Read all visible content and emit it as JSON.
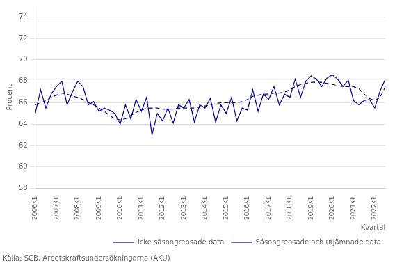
{
  "chart_data": {
    "type": "line",
    "xlabel": "Kvartal",
    "ylabel": "Procent",
    "annotations": [
      "Källa: SCB, Arbetskraftsundersökningarna (AKU)"
    ],
    "categories": [
      "2006K1",
      null,
      null,
      null,
      "2007K1",
      null,
      null,
      null,
      "2008K1",
      null,
      null,
      null,
      "2009K1",
      null,
      null,
      null,
      "2010K1",
      null,
      null,
      null,
      "2011K1",
      null,
      null,
      null,
      "2012K1",
      null,
      null,
      null,
      "2013K1",
      null,
      null,
      null,
      "2014K1",
      null,
      null,
      null,
      "2015K1",
      null,
      null,
      null,
      "2016K1",
      null,
      null,
      null,
      "2017K1",
      null,
      null,
      null,
      "2018K1",
      null,
      null,
      null,
      "2019K1",
      null,
      null,
      null,
      "2020K1",
      null,
      null,
      null,
      "2021K1",
      null,
      null,
      null,
      "2022K1",
      null,
      null
    ],
    "series": [
      {
        "name": "Icke säsongrensade data",
        "color": "#00008B",
        "line_style": "solid",
        "values": [
          65.0,
          67.2,
          65.5,
          66.8,
          67.5,
          68.0,
          65.8,
          67.0,
          68.0,
          67.5,
          65.8,
          66.1,
          65.2,
          65.5,
          65.3,
          65.0,
          64.0,
          65.8,
          64.5,
          66.3,
          65.2,
          66.5,
          63.0,
          65.0,
          64.3,
          65.5,
          64.1,
          65.8,
          65.5,
          66.3,
          64.2,
          65.8,
          65.5,
          66.4,
          64.2,
          65.8,
          65.0,
          66.5,
          64.3,
          65.5,
          65.3,
          67.2,
          65.2,
          66.8,
          66.3,
          67.5,
          65.8,
          66.8,
          66.5,
          68.2,
          66.5,
          68.0,
          68.5,
          68.2,
          67.5,
          68.3,
          68.6,
          68.2,
          67.5,
          68.1,
          66.2,
          65.8,
          66.2,
          66.3,
          65.5,
          67.1,
          68.2
        ]
      },
      {
        "name": "Säsongrensade och utjämnade data",
        "color": "#00008B",
        "line_style": "dashed",
        "values": [
          65.8,
          66.0,
          66.2,
          66.5,
          66.7,
          66.9,
          66.8,
          66.6,
          66.5,
          66.3,
          66.0,
          65.8,
          65.5,
          65.2,
          64.8,
          64.5,
          64.4,
          64.5,
          64.8,
          65.1,
          65.3,
          65.5,
          65.5,
          65.5,
          65.4,
          65.4,
          65.4,
          65.5,
          65.5,
          65.5,
          65.5,
          65.6,
          65.7,
          65.8,
          65.9,
          66.0,
          66.0,
          66.0,
          66.0,
          66.1,
          66.3,
          66.6,
          66.7,
          66.8,
          66.8,
          66.9,
          66.9,
          67.0,
          67.2,
          67.5,
          67.7,
          67.8,
          67.9,
          67.9,
          67.9,
          67.8,
          67.7,
          67.6,
          67.5,
          67.5,
          67.5,
          67.3,
          66.8,
          66.4,
          66.2,
          66.5,
          67.5
        ]
      }
    ],
    "ylim": [
      58,
      75
    ],
    "yticks": [
      58,
      60,
      62,
      64,
      66,
      68,
      70,
      72,
      74
    ],
    "grid": true,
    "legend": "lower right"
  }
}
